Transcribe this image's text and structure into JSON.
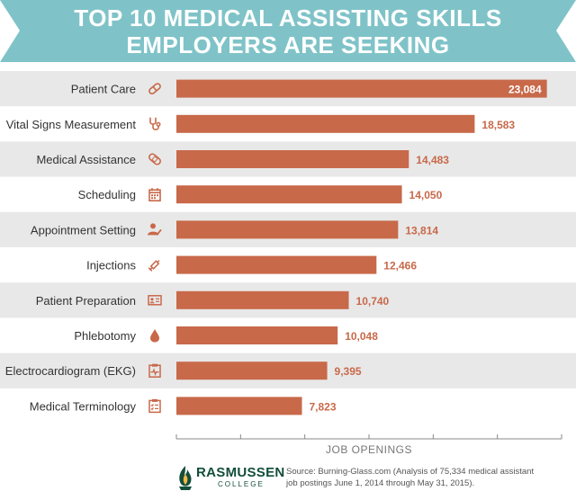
{
  "header": {
    "title_line1": "TOP 10 MEDICAL ASSISTING SKILLS",
    "title_line2": "EMPLOYERS ARE SEEKING"
  },
  "colors": {
    "banner": "#7fc3c8",
    "bar": "#c8694a",
    "stripe": "#e8e8e8",
    "icon": "#c8694a",
    "label": "#333333",
    "axis": "#888888",
    "brand": "#124e3a"
  },
  "chart_data": {
    "type": "bar",
    "orientation": "horizontal",
    "title": "TOP 10 MEDICAL ASSISTING SKILLS EMPLOYERS ARE SEEKING",
    "xlabel": "JOB OPENINGS",
    "ylabel": "",
    "xlim": [
      0,
      24000
    ],
    "categories": [
      "Patient Care",
      "Vital Signs Measurement",
      "Medical Assistance",
      "Scheduling",
      "Appointment Setting",
      "Injections",
      "Patient Preparation",
      "Phlebotomy",
      "Electrocardiogram (EKG)",
      "Medical Terminology"
    ],
    "values": [
      23084,
      18583,
      14483,
      14050,
      13814,
      12466,
      10740,
      10048,
      9395,
      7823
    ],
    "value_labels": [
      "23,084",
      "18,583",
      "14,483",
      "14,050",
      "13,814",
      "12,466",
      "10,740",
      "10,048",
      "9,395",
      "7,823"
    ],
    "icons": [
      "pill-icon",
      "stethoscope-icon",
      "bandage-icon",
      "calendar-icon",
      "user-check-icon",
      "syringe-icon",
      "id-card-icon",
      "blood-drop-icon",
      "ekg-clipboard-icon",
      "checklist-icon"
    ]
  },
  "footer": {
    "logo_name": "RASMUSSEN",
    "logo_sub": "COLLEGE",
    "source_line1": "Source: Burning-Glass.com (Analysis of 75,334 medical assistant",
    "source_line2": "job postings June 1, 2014 through May 31, 2015)."
  }
}
